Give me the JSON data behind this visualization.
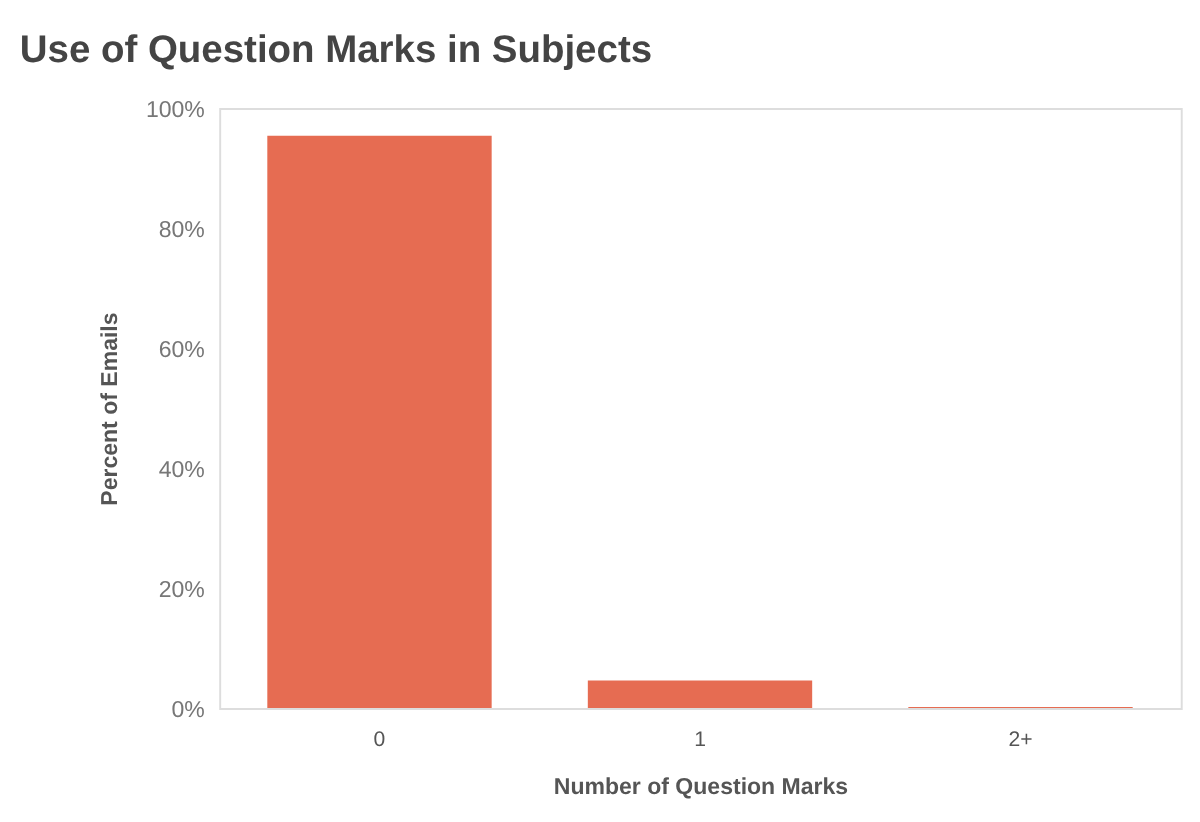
{
  "chart_data": {
    "type": "bar",
    "title": "Use of Question Marks in Subjects",
    "xlabel": "Number of Question Marks",
    "ylabel": "Percent of Emails",
    "categories": [
      "0",
      "1",
      "2+"
    ],
    "values": [
      95.4,
      4.6,
      0.2
    ],
    "color": "#e66c52",
    "ylim": [
      0,
      100
    ],
    "yticks": [
      {
        "value": 0,
        "label": "0%"
      },
      {
        "value": 20,
        "label": "20%"
      },
      {
        "value": 40,
        "label": "40%"
      },
      {
        "value": 60,
        "label": "60%"
      },
      {
        "value": 80,
        "label": "80%"
      },
      {
        "value": 100,
        "label": "100%"
      }
    ],
    "grid": false
  }
}
